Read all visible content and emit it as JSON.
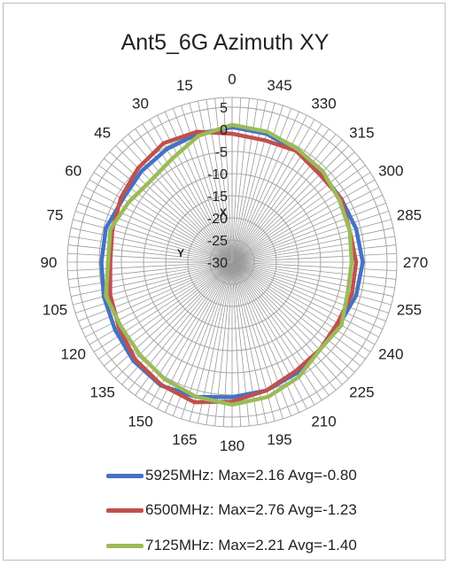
{
  "chart_data": {
    "type": "polar-line",
    "title": "Ant5_6G Azimuth XY",
    "angle_ticks": [
      "0",
      "15",
      "30",
      "45",
      "60",
      "75",
      "90",
      "105",
      "120",
      "135",
      "150",
      "165",
      "180",
      "195",
      "210",
      "225",
      "240",
      "255",
      "270",
      "285",
      "300",
      "315",
      "330",
      "345"
    ],
    "angle_direction": "counterclockwise",
    "radial_ticks": [
      "5",
      "0",
      "-5",
      "-10",
      "-15",
      "-20",
      "-25",
      "-30"
    ],
    "rlim": [
      -30,
      5
    ],
    "axis_markers": {
      "x": "X",
      "y": "Y"
    },
    "legend_position": "bottom",
    "series": [
      {
        "name": "5925MHz: Max=2.16 Avg=-0.80",
        "color": "#4472c4",
        "angles": [
          0,
          15,
          30,
          45,
          60,
          75,
          90,
          105,
          120,
          135,
          150,
          165,
          180,
          195,
          210,
          225,
          240,
          255,
          270,
          285,
          300,
          315,
          330,
          345
        ],
        "values": [
          0.5,
          0.0,
          -0.5,
          -1.0,
          -1.5,
          -0.5,
          -0.5,
          0.0,
          0.5,
          1.5,
          2.16,
          1.5,
          0.5,
          0.0,
          -1.0,
          -2.0,
          -2.0,
          -1.0,
          -0.5,
          -1.0,
          -1.5,
          -1.5,
          -1.0,
          0.0
        ]
      },
      {
        "name": "6500MHz: Max=2.76 Avg=-1.23",
        "color": "#c0504d",
        "angles": [
          0,
          15,
          30,
          45,
          60,
          75,
          90,
          105,
          120,
          135,
          150,
          165,
          180,
          195,
          210,
          225,
          240,
          255,
          270,
          285,
          300,
          315,
          330,
          345
        ],
        "values": [
          -1.0,
          0.5,
          1.0,
          0.0,
          -1.0,
          -2.0,
          -2.5,
          -1.5,
          -0.5,
          1.0,
          2.0,
          2.76,
          1.5,
          0.0,
          -1.5,
          -2.0,
          -2.5,
          -2.0,
          -2.0,
          -2.5,
          -1.5,
          -2.0,
          -1.0,
          -1.5
        ]
      },
      {
        "name": "7125MHz: Max=2.21 Avg=-1.40",
        "color": "#9bbb59",
        "angles": [
          0,
          15,
          30,
          45,
          60,
          75,
          90,
          105,
          120,
          135,
          150,
          165,
          180,
          195,
          210,
          225,
          240,
          255,
          270,
          285,
          300,
          315,
          330,
          345
        ],
        "values": [
          1.0,
          -0.5,
          -3.0,
          -4.0,
          -3.0,
          -1.5,
          -2.0,
          -0.5,
          -1.0,
          -0.5,
          0.5,
          1.5,
          2.21,
          1.5,
          0.0,
          -2.0,
          -1.5,
          -3.0,
          -3.0,
          -2.5,
          -2.0,
          -1.0,
          -0.5,
          0.5
        ]
      }
    ]
  }
}
